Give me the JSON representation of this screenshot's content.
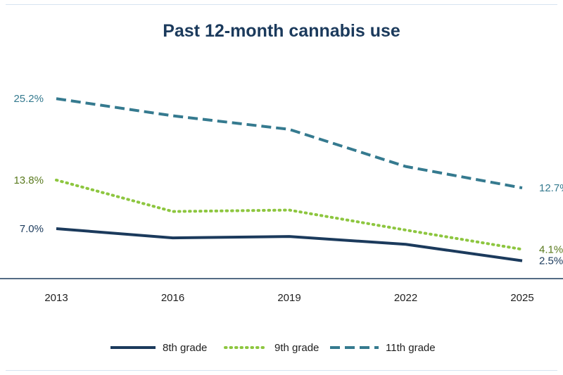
{
  "chart_data": {
    "type": "line",
    "title": "Past 12-month cannabis use",
    "x": [
      "2013",
      "2016",
      "2019",
      "2022",
      "2025"
    ],
    "series": [
      {
        "name": "8th grade",
        "values": [
          7.0,
          5.7,
          5.9,
          4.8,
          2.5
        ],
        "start_label": "7.0%",
        "end_label": "2.5%",
        "color": "#1b3a5c",
        "label_color": "#1b3a5c",
        "style": "solid"
      },
      {
        "name": "9th grade",
        "values": [
          13.8,
          9.4,
          9.6,
          6.8,
          4.1
        ],
        "start_label": "13.8%",
        "end_label": "4.1%",
        "color": "#8dc63f",
        "label_color": "#5a7a1e",
        "style": "dotted"
      },
      {
        "name": "11th grade",
        "values": [
          25.2,
          22.8,
          20.9,
          15.7,
          12.7
        ],
        "start_label": "25.2%",
        "end_label": "12.7%",
        "color": "#357a8f",
        "label_color": "#357a8f",
        "style": "dashed"
      }
    ],
    "ylim": [
      0,
      28
    ],
    "grid": false,
    "legend": "bottom-center",
    "colors": {
      "title": "#1b3a5c",
      "axis": "#1b3a5c"
    }
  }
}
